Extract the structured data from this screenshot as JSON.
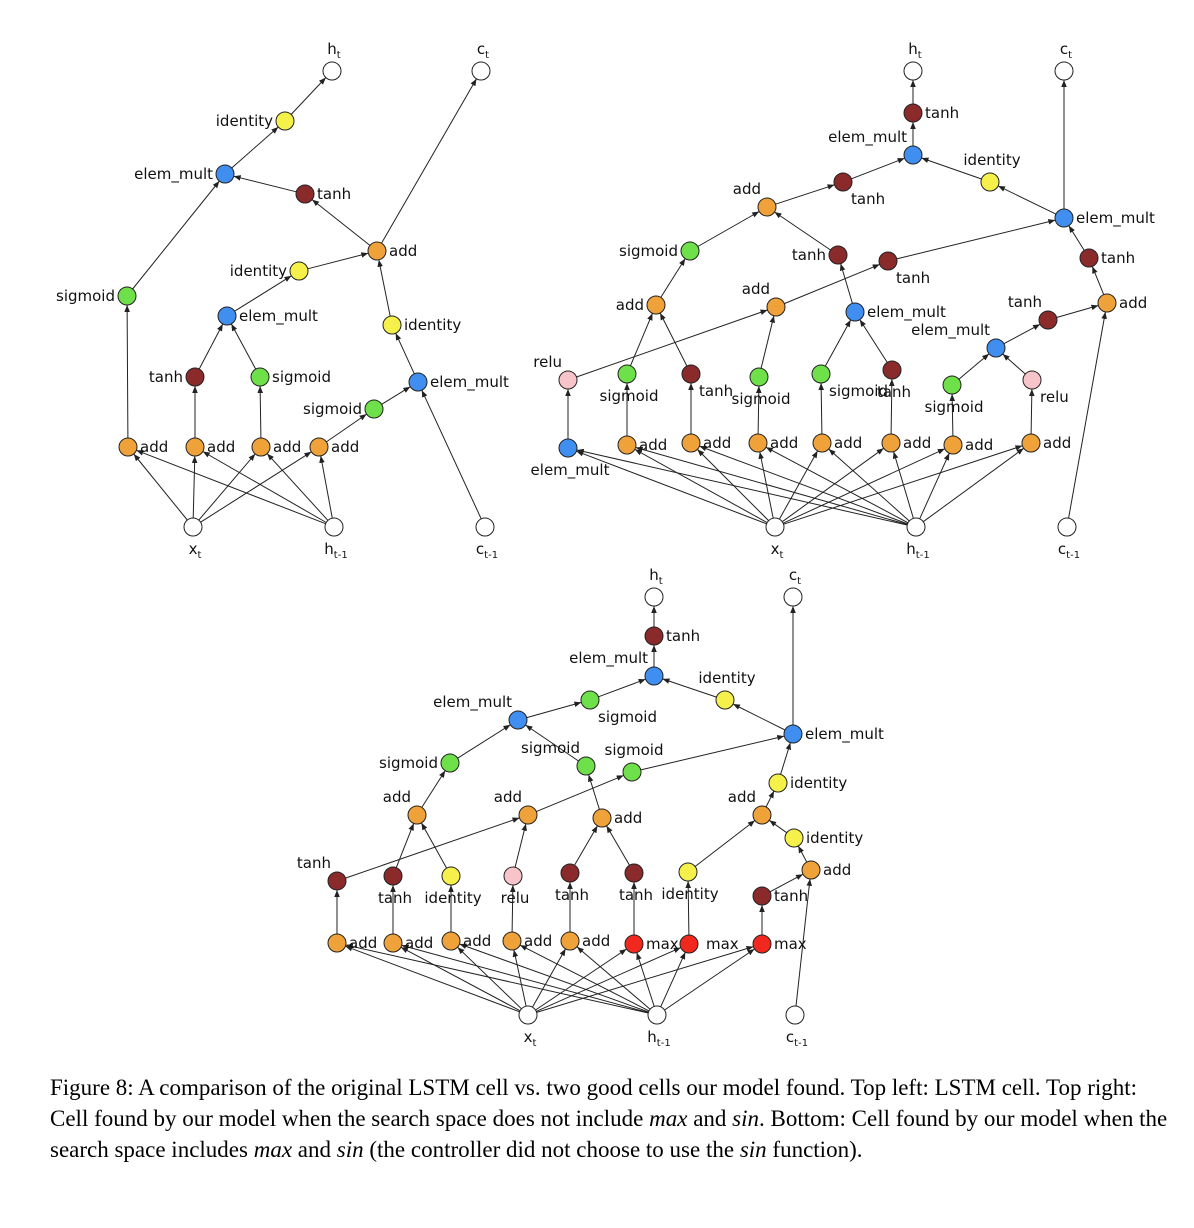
{
  "colors": {
    "add": "#f0a23a",
    "tanh": "#8b2a2a",
    "sigmoid": "#6ee04a",
    "elem_mult": "#3f8ef0",
    "identity": "#f5f04a",
    "relu": "#f7c4c9",
    "max": "#f0281e",
    "io": "#ffffff"
  },
  "caption": {
    "prefix": "Figure 8: A comparison of the original LSTM cell vs. two good cells our model found. Top left: LSTM cell. Top right: Cell found by our model when the search space does not include ",
    "max1": "max",
    "and1": " and ",
    "sin1": "sin",
    "mid": ". Bottom: Cell found by our model when the search space includes ",
    "max2": "max",
    "and2": " and ",
    "sin2": "sin",
    "mid2": " (the controller did not choose to use the ",
    "sin3": "sin",
    "suffix": " function)."
  },
  "graphs": [
    {
      "id": "lstm",
      "nodes": [
        {
          "id": "ht",
          "type": "io",
          "label": "h",
          "sub": "t"
        },
        {
          "id": "ct",
          "type": "io",
          "label": "c",
          "sub": "t"
        },
        {
          "id": "id_top",
          "type": "identity",
          "label": "identity"
        },
        {
          "id": "em_top",
          "type": "elem_mult",
          "label": "elem_mult"
        },
        {
          "id": "tanh1",
          "type": "tanh",
          "label": "tanh"
        },
        {
          "id": "add_c",
          "type": "add",
          "label": "add"
        },
        {
          "id": "id2",
          "type": "identity",
          "label": "identity"
        },
        {
          "id": "sig1",
          "type": "sigmoid",
          "label": "sigmoid"
        },
        {
          "id": "em2",
          "type": "elem_mult",
          "label": "elem_mult"
        },
        {
          "id": "id3",
          "type": "identity",
          "label": "identity"
        },
        {
          "id": "tanh2",
          "type": "tanh",
          "label": "tanh"
        },
        {
          "id": "sig2",
          "type": "sigmoid",
          "label": "sigmoid"
        },
        {
          "id": "em3",
          "type": "elem_mult",
          "label": "elem_mult"
        },
        {
          "id": "sig3",
          "type": "sigmoid",
          "label": "sigmoid"
        },
        {
          "id": "a1",
          "type": "add",
          "label": "add"
        },
        {
          "id": "a2",
          "type": "add",
          "label": "add"
        },
        {
          "id": "a3",
          "type": "add",
          "label": "add"
        },
        {
          "id": "a4",
          "type": "add",
          "label": "add"
        },
        {
          "id": "xt",
          "type": "io",
          "label": "x",
          "sub": "t"
        },
        {
          "id": "ht1",
          "type": "io",
          "label": "h",
          "sub": "t-1"
        },
        {
          "id": "ct1",
          "type": "io",
          "label": "c",
          "sub": "t-1"
        }
      ]
    },
    {
      "id": "no_max",
      "nodes": [
        {
          "id": "ht",
          "type": "io",
          "label": "h",
          "sub": "t"
        },
        {
          "id": "ct",
          "type": "io",
          "label": "c",
          "sub": "t"
        },
        {
          "id": "tanh_top",
          "type": "tanh",
          "label": "tanh"
        },
        {
          "id": "em_top",
          "type": "elem_mult",
          "label": "elem_mult"
        },
        {
          "id": "id_r",
          "type": "identity",
          "label": "identity"
        },
        {
          "id": "tanh_a",
          "type": "tanh",
          "label": "tanh"
        },
        {
          "id": "add_a",
          "type": "add",
          "label": "add"
        },
        {
          "id": "em_r",
          "type": "elem_mult",
          "label": "elem_mult"
        },
        {
          "id": "sig_a",
          "type": "sigmoid",
          "label": "sigmoid"
        },
        {
          "id": "tanh_b",
          "type": "tanh",
          "label": "tanh"
        },
        {
          "id": "tanh_c",
          "type": "tanh",
          "label": "tanh"
        },
        {
          "id": "tanh_r",
          "type": "tanh",
          "label": "tanh"
        },
        {
          "id": "add_b",
          "type": "add",
          "label": "add"
        },
        {
          "id": "add_m",
          "type": "add",
          "label": "add"
        },
        {
          "id": "em_m",
          "type": "elem_mult",
          "label": "elem_mult"
        },
        {
          "id": "tanh_d",
          "type": "tanh",
          "label": "tanh"
        },
        {
          "id": "add_r",
          "type": "add",
          "label": "add"
        },
        {
          "id": "em_d",
          "type": "elem_mult",
          "label": "elem_mult"
        },
        {
          "id": "relu1",
          "type": "relu",
          "label": "relu"
        },
        {
          "id": "sig_b",
          "type": "sigmoid",
          "label": "sigmoid"
        },
        {
          "id": "tanh_e",
          "type": "tanh",
          "label": "tanh"
        },
        {
          "id": "sig_c",
          "type": "sigmoid",
          "label": "sigmoid"
        },
        {
          "id": "sig_d",
          "type": "sigmoid",
          "label": "sigmoid"
        },
        {
          "id": "tanh_f",
          "type": "tanh",
          "label": "tanh"
        },
        {
          "id": "sig_e",
          "type": "sigmoid",
          "label": "sigmoid"
        },
        {
          "id": "relu2",
          "type": "relu",
          "label": "relu"
        },
        {
          "id": "em_bl",
          "type": "elem_mult",
          "label": "elem_mult"
        },
        {
          "id": "b1",
          "type": "add",
          "label": "add"
        },
        {
          "id": "b2",
          "type": "add",
          "label": "add"
        },
        {
          "id": "b3",
          "type": "add",
          "label": "add"
        },
        {
          "id": "b4",
          "type": "add",
          "label": "add"
        },
        {
          "id": "b5",
          "type": "add",
          "label": "add"
        },
        {
          "id": "b6",
          "type": "add",
          "label": "add"
        },
        {
          "id": "b7",
          "type": "add",
          "label": "add"
        },
        {
          "id": "xt",
          "type": "io",
          "label": "x",
          "sub": "t"
        },
        {
          "id": "ht1",
          "type": "io",
          "label": "h",
          "sub": "t-1"
        },
        {
          "id": "ct1",
          "type": "io",
          "label": "c",
          "sub": "t-1"
        }
      ]
    },
    {
      "id": "with_max",
      "nodes": [
        {
          "id": "ht",
          "type": "io",
          "label": "h",
          "sub": "t"
        },
        {
          "id": "ct",
          "type": "io",
          "label": "c",
          "sub": "t"
        },
        {
          "id": "tanh_top",
          "type": "tanh",
          "label": "tanh"
        },
        {
          "id": "em_top",
          "type": "elem_mult",
          "label": "elem_mult"
        },
        {
          "id": "sig_a",
          "type": "sigmoid",
          "label": "sigmoid"
        },
        {
          "id": "id_a",
          "type": "identity",
          "label": "identity"
        },
        {
          "id": "em_l",
          "type": "elem_mult",
          "label": "elem_mult"
        },
        {
          "id": "em_r",
          "type": "elem_mult",
          "label": "elem_mult"
        },
        {
          "id": "sig_b",
          "type": "sigmoid",
          "label": "sigmoid"
        },
        {
          "id": "sig_c",
          "type": "sigmoid",
          "label": "sigmoid"
        },
        {
          "id": "sig_d",
          "type": "sigmoid",
          "label": "sigmoid"
        },
        {
          "id": "id_b",
          "type": "identity",
          "label": "identity"
        },
        {
          "id": "add_a",
          "type": "add",
          "label": "add"
        },
        {
          "id": "add_b",
          "type": "add",
          "label": "add"
        },
        {
          "id": "add_c",
          "type": "add",
          "label": "add"
        },
        {
          "id": "add_d",
          "type": "add",
          "label": "add"
        },
        {
          "id": "id_c",
          "type": "identity",
          "label": "identity"
        },
        {
          "id": "tanh_a",
          "type": "tanh",
          "label": "tanh"
        },
        {
          "id": "add_e",
          "type": "add",
          "label": "add"
        },
        {
          "id": "tanh_b",
          "type": "tanh",
          "label": "tanh"
        },
        {
          "id": "id_d",
          "type": "identity",
          "label": "identity"
        },
        {
          "id": "relu1",
          "type": "relu",
          "label": "relu"
        },
        {
          "id": "tanh_c",
          "type": "tanh",
          "label": "tanh"
        },
        {
          "id": "tanh_d",
          "type": "tanh",
          "label": "tanh"
        },
        {
          "id": "id_e",
          "type": "identity",
          "label": "identity"
        },
        {
          "id": "tanh_e",
          "type": "tanh",
          "label": "tanh"
        },
        {
          "id": "b1",
          "type": "add",
          "label": "add"
        },
        {
          "id": "b2",
          "type": "add",
          "label": "add"
        },
        {
          "id": "b3",
          "type": "add",
          "label": "add"
        },
        {
          "id": "b4",
          "type": "add",
          "label": "add"
        },
        {
          "id": "b5",
          "type": "add",
          "label": "add"
        },
        {
          "id": "m1",
          "type": "max",
          "label": "max"
        },
        {
          "id": "m2",
          "type": "max",
          "label": "max"
        },
        {
          "id": "m3",
          "type": "max",
          "label": "max"
        },
        {
          "id": "xt",
          "type": "io",
          "label": "x",
          "sub": "t"
        },
        {
          "id": "ht1",
          "type": "io",
          "label": "h",
          "sub": "t-1"
        },
        {
          "id": "ct1",
          "type": "io",
          "label": "c",
          "sub": "t-1"
        }
      ]
    }
  ]
}
